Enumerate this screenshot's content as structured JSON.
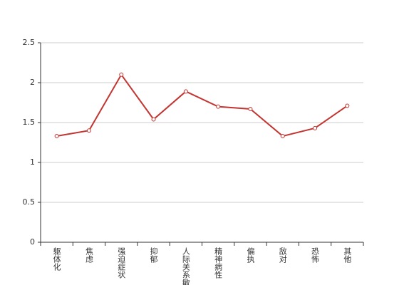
{
  "chart_data": {
    "type": "line",
    "categories": [
      "躯体化",
      "焦虑",
      "强迫症状",
      "抑郁",
      "人际关系敏感",
      "精神病性",
      "偏执",
      "敌对",
      "恐怖",
      "其他"
    ],
    "series": [
      {
        "color": "#c23531",
        "values": [
          1.33,
          1.4,
          2.1,
          1.54,
          1.89,
          1.7,
          1.67,
          1.33,
          1.43,
          1.71
        ]
      }
    ],
    "ylim": [
      0,
      2.5
    ],
    "yticks": [
      0,
      0.5,
      1,
      1.5,
      2,
      2.5
    ],
    "grid": true
  }
}
